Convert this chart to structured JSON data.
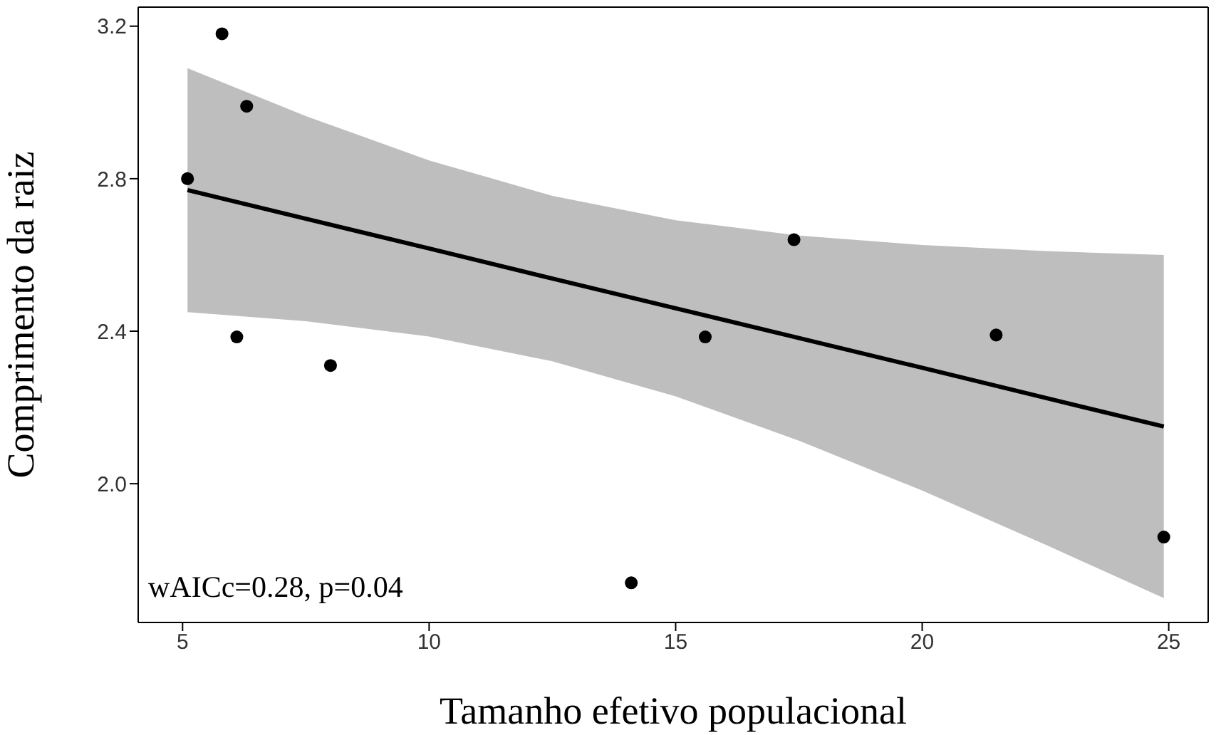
{
  "chart_data": {
    "type": "scatter",
    "xlabel": "Tamanho efetivo populacional",
    "ylabel": "Comprimento da raiz",
    "xlim": [
      4.1,
      25.8
    ],
    "xticks": [
      5,
      10,
      15,
      20,
      25
    ],
    "ylim": [
      1.636,
      3.25
    ],
    "yticks": [
      {
        "value": 2,
        "label": "2.0"
      },
      {
        "value": 2.4,
        "label": "2.4"
      },
      {
        "value": 2.8,
        "label": "2.8"
      },
      {
        "value": 3.2,
        "label": "3.2"
      }
    ],
    "grid": false,
    "legend": false,
    "marker": "circle",
    "annotations": [
      "wAICc=0.28, p=0.04"
    ],
    "series": [
      {
        "type": "line",
        "color": "#000000",
        "marker": "none",
        "x": [
          5.1,
          7.5,
          10,
          12.5,
          15,
          17.5,
          20,
          22.5,
          24.9
        ],
        "values": [
          2.77,
          2.695,
          2.617,
          2.538,
          2.46,
          2.382,
          2.304,
          2.225,
          2.15
        ],
        "lower": [
          2.45,
          2.426,
          2.386,
          2.321,
          2.229,
          2.113,
          1.982,
          1.84,
          1.7
        ],
        "upper": [
          3.09,
          2.964,
          2.848,
          2.755,
          2.691,
          2.651,
          2.626,
          2.61,
          2.6
        ]
      },
      {
        "color": "#000000",
        "x": [
          5.1,
          5.8,
          6.3,
          6.1,
          8.0,
          14.1,
          15.6,
          17.4,
          21.5,
          24.9
        ],
        "values": [
          2.8,
          3.18,
          2.99,
          2.385,
          2.31,
          1.74,
          2.385,
          2.64,
          2.39,
          1.86
        ]
      }
    ]
  }
}
